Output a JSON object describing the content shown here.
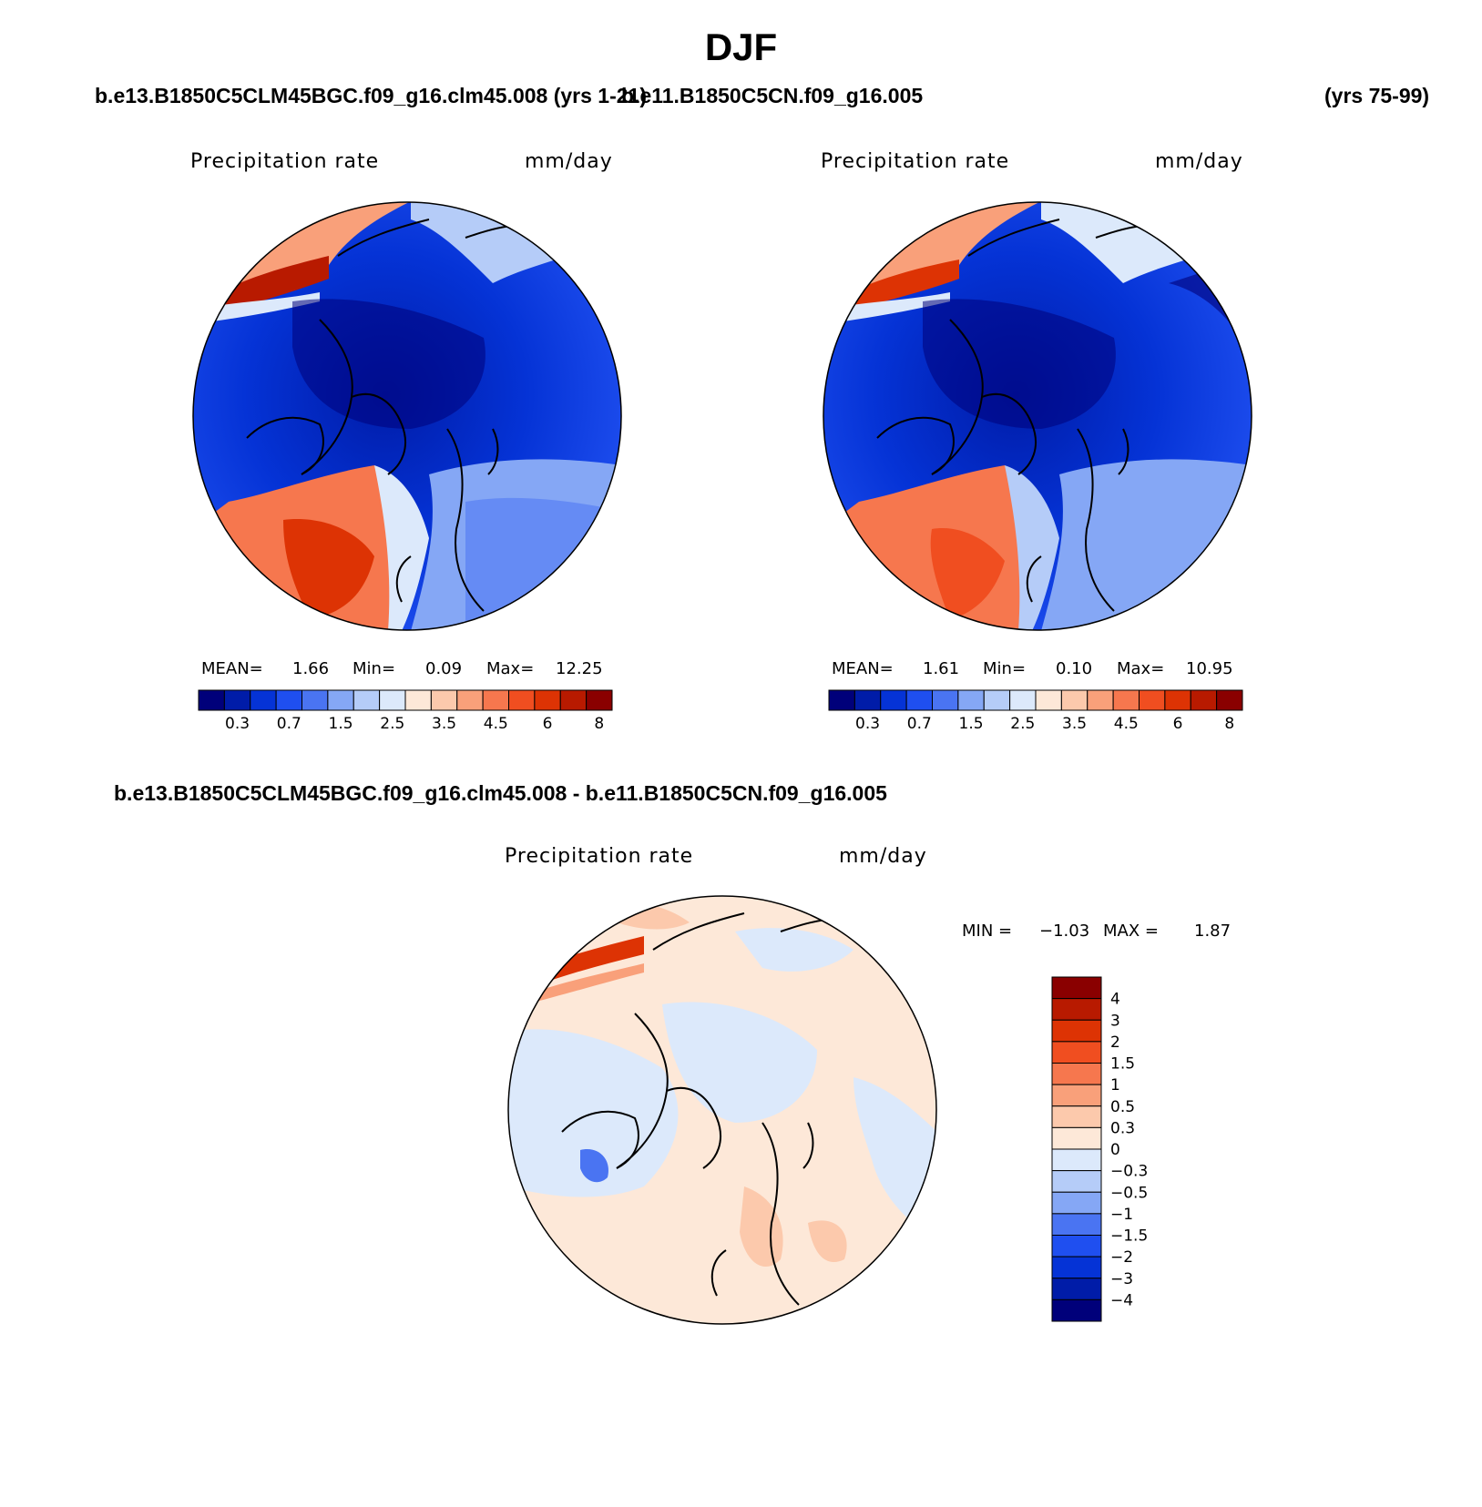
{
  "figure": {
    "title": "DJF",
    "case1": "b.e13.B1850C5CLM45BGC.f09_g16.clm45.008 (yrs 1-21)",
    "case2_label": "b.e11.B1850C5CN.f09_g16.005",
    "case2_years": "(yrs 75-99)",
    "diff_title": "b.e13.B1850C5CLM45BGC.f09_g16.clm45.008 - b.e11.B1850C5CN.f09_g16.005"
  },
  "chart_data": [
    {
      "type": "heatmap",
      "projection": "north polar stereographic",
      "left_label": "Precipitation rate",
      "right_label": "mm/day",
      "stats": {
        "mean_label": "MEAN=",
        "mean": "1.66",
        "min_label": "Min=",
        "min": "0.09",
        "max_label": "Max=",
        "max": "12.25"
      },
      "colorbar_ticks": [
        "0.3",
        "0.7",
        "1.5",
        "2.5",
        "3.5",
        "4.5",
        "6",
        "8"
      ],
      "colorbar_colors": [
        "#00007a",
        "#001ca8",
        "#0533d6",
        "#1f4ff0",
        "#4a74f2",
        "#85a7f5",
        "#b5ccf8",
        "#dce9fb",
        "#fde8d8",
        "#fcc9ac",
        "#f9a07a",
        "#f6774e",
        "#f04e20",
        "#dd3304",
        "#b81a00",
        "#8a0000"
      ]
    },
    {
      "type": "heatmap",
      "projection": "north polar stereographic",
      "left_label": "Precipitation rate",
      "right_label": "mm/day",
      "stats": {
        "mean_label": "MEAN=",
        "mean": "1.61",
        "min_label": "Min=",
        "min": "0.10",
        "max_label": "Max=",
        "max": "10.95"
      },
      "colorbar_ticks": [
        "0.3",
        "0.7",
        "1.5",
        "2.5",
        "3.5",
        "4.5",
        "6",
        "8"
      ],
      "colorbar_colors": [
        "#00007a",
        "#001ca8",
        "#0533d6",
        "#1f4ff0",
        "#4a74f2",
        "#85a7f5",
        "#b5ccf8",
        "#dce9fb",
        "#fde8d8",
        "#fcc9ac",
        "#f9a07a",
        "#f6774e",
        "#f04e20",
        "#dd3304",
        "#b81a00",
        "#8a0000"
      ]
    },
    {
      "type": "heatmap",
      "projection": "north polar stereographic",
      "left_label": "Precipitation rate",
      "right_label": "mm/day",
      "stats": {
        "min_label": "MIN =",
        "min": "−1.03",
        "max_label": "MAX =",
        "max": "1.87"
      },
      "colorbar_ticks": [
        "4",
        "3",
        "2",
        "1.5",
        "1",
        "0.5",
        "0.3",
        "0",
        "−0.3",
        "−0.5",
        "−1",
        "−1.5",
        "−2",
        "−3",
        "−4"
      ],
      "colorbar_colors": [
        "#8a0000",
        "#b81a00",
        "#dd3304",
        "#f04e20",
        "#f6774e",
        "#f9a07a",
        "#fcc9ac",
        "#fde8d8",
        "#dce9fb",
        "#b5ccf8",
        "#85a7f5",
        "#4a74f2",
        "#1f4ff0",
        "#0533d6",
        "#001ca8",
        "#00007a"
      ]
    }
  ]
}
